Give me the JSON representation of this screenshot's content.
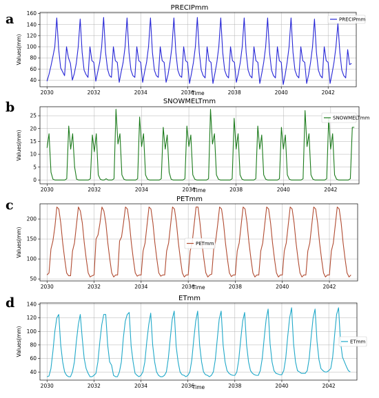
{
  "figure": {
    "panels": [
      {
        "letter": "a"
      },
      {
        "letter": "b"
      },
      {
        "letter": "c"
      },
      {
        "letter": "d"
      }
    ]
  },
  "chart_data": [
    {
      "type": "line",
      "title": "PRECIPmm",
      "xlabel": "Time",
      "ylabel": "Values(mm)",
      "xlim": [
        2029.7,
        2043.2
      ],
      "ylim": [
        28,
        162
      ],
      "yticks": [
        40,
        60,
        80,
        100,
        120,
        140,
        160
      ],
      "xticks": [
        2030,
        2032,
        2034,
        2036,
        2038,
        2040,
        2042
      ],
      "grid": true,
      "legend": "top-right",
      "series": [
        {
          "name": "PRECIPmm",
          "color": "#2424d6",
          "x_start": 2030.0,
          "step_months": 1,
          "values": [
            38,
            50,
            65,
            82,
            100,
            152,
            95,
            62,
            55,
            48,
            100,
            80,
            70,
            40,
            52,
            70,
            100,
            150,
            90,
            58,
            50,
            45,
            100,
            75,
            72,
            38,
            55,
            72,
            100,
            153,
            90,
            60,
            48,
            45,
            100,
            75,
            72,
            36,
            55,
            72,
            100,
            152,
            90,
            58,
            48,
            45,
            100,
            75,
            72,
            36,
            55,
            72,
            100,
            152,
            90,
            58,
            48,
            45,
            100,
            75,
            72,
            36,
            50,
            72,
            100,
            152,
            90,
            58,
            48,
            45,
            100,
            75,
            72,
            34,
            52,
            72,
            100,
            153,
            90,
            58,
            48,
            44,
            100,
            75,
            72,
            34,
            52,
            72,
            100,
            152,
            90,
            58,
            48,
            44,
            100,
            75,
            72,
            36,
            52,
            72,
            100,
            152,
            90,
            58,
            48,
            44,
            100,
            75,
            72,
            34,
            52,
            72,
            100,
            152,
            90,
            58,
            48,
            44,
            100,
            75,
            72,
            32,
            50,
            72,
            100,
            152,
            90,
            58,
            48,
            44,
            100,
            75,
            72,
            34,
            50,
            72,
            100,
            150,
            90,
            58,
            48,
            44,
            100,
            75,
            72,
            34,
            52,
            72,
            100,
            142,
            90,
            58,
            48,
            44,
            95,
            68,
            70
          ]
        }
      ]
    },
    {
      "type": "line",
      "title": "SNOWMELTmm",
      "xlabel": "Time",
      "ylabel": "Values(mm)",
      "xlim": [
        2029.7,
        2043.2
      ],
      "ylim": [
        -1.5,
        28.5
      ],
      "yticks": [
        0,
        5,
        10,
        15,
        20,
        25
      ],
      "xticks": [
        2030,
        2032,
        2034,
        2036,
        2038,
        2040,
        2042
      ],
      "grid": true,
      "legend": "top-right",
      "series": [
        {
          "name": "SNOWMELTmm",
          "color": "#1a7a1a",
          "x_start": 2030.0,
          "step_months": 1,
          "values": [
            12.5,
            18,
            3,
            0.3,
            0,
            0,
            0,
            0,
            0,
            0,
            0.5,
            21,
            12,
            18,
            5,
            0.3,
            0,
            0,
            0,
            0,
            0,
            0,
            0.5,
            17.5,
            11,
            18,
            2,
            0.3,
            0,
            0,
            0.5,
            0,
            0,
            0,
            0.5,
            27.5,
            14,
            18,
            2,
            0.3,
            0,
            0,
            0,
            0,
            0,
            0,
            0.5,
            24.5,
            13,
            18,
            2,
            0.3,
            0,
            0,
            0,
            0,
            0,
            0,
            0.5,
            20.5,
            12,
            17.5,
            3,
            0.3,
            0,
            0,
            0,
            0,
            0,
            0,
            0.5,
            21,
            13,
            17.5,
            2,
            0.3,
            0,
            0,
            0,
            0,
            0,
            0,
            0.5,
            27.5,
            14,
            18,
            2,
            0.3,
            0,
            0,
            0,
            0,
            0,
            0,
            0.5,
            24,
            12,
            18,
            2,
            0.3,
            0,
            0,
            0,
            0,
            0,
            0,
            0.5,
            21,
            12,
            17.5,
            2,
            0.3,
            0,
            0,
            0,
            0,
            0,
            0,
            0.5,
            20.5,
            12,
            17.5,
            2,
            0.3,
            0,
            0,
            0,
            0,
            0,
            0,
            0.5,
            27,
            13,
            18,
            2,
            0.3,
            0,
            0,
            0,
            0,
            0,
            0,
            0.5,
            24,
            12,
            18,
            2,
            0.3,
            0,
            0,
            0,
            0,
            0,
            0,
            0.5,
            20.5,
            20.5
          ]
        }
      ]
    },
    {
      "type": "line",
      "title": "PETmm",
      "xlabel": "Time",
      "ylabel": "Values(mm)",
      "xlim": [
        2029.7,
        2043.2
      ],
      "ylim": [
        45,
        238
      ],
      "yticks": [
        50,
        100,
        150,
        200
      ],
      "xticks": [
        2030,
        2032,
        2034,
        2036,
        2038,
        2040,
        2042
      ],
      "grid": true,
      "legend": "center",
      "series": [
        {
          "name": "PETmm",
          "color": "#b04a30",
          "x_start": 2030.0,
          "step_months": 1,
          "values": [
            60,
            65,
            125,
            145,
            180,
            230,
            225,
            190,
            140,
            100,
            65,
            58,
            58,
            120,
            140,
            185,
            230,
            220,
            190,
            140,
            100,
            65,
            55,
            58,
            60,
            150,
            160,
            190,
            230,
            220,
            190,
            140,
            100,
            65,
            55,
            60,
            60,
            145,
            155,
            190,
            230,
            225,
            190,
            140,
            100,
            65,
            57,
            60,
            60,
            120,
            140,
            185,
            230,
            225,
            190,
            140,
            100,
            65,
            57,
            60,
            60,
            120,
            140,
            185,
            230,
            225,
            190,
            140,
            100,
            65,
            55,
            60,
            60,
            120,
            140,
            185,
            230,
            230,
            190,
            140,
            100,
            65,
            55,
            60,
            62,
            125,
            145,
            185,
            230,
            225,
            190,
            140,
            100,
            65,
            56,
            60,
            60,
            120,
            140,
            185,
            230,
            225,
            190,
            140,
            100,
            65,
            55,
            60,
            60,
            120,
            140,
            185,
            230,
            225,
            190,
            140,
            100,
            65,
            55,
            60,
            60,
            120,
            140,
            185,
            230,
            225,
            190,
            140,
            100,
            65,
            55,
            60,
            60,
            120,
            140,
            185,
            230,
            225,
            190,
            140,
            100,
            65,
            55,
            60,
            60,
            120,
            140,
            185,
            230,
            225,
            190,
            140,
            100,
            65,
            55,
            60
          ]
        }
      ]
    },
    {
      "type": "line",
      "title": "ETmm",
      "xlabel": "Time",
      "ylabel": "Values(mm)",
      "xlim": [
        2029.7,
        2043.2
      ],
      "ylim": [
        28,
        142
      ],
      "yticks": [
        40,
        60,
        80,
        100,
        120,
        140
      ],
      "xticks": [
        2030,
        2032,
        2034,
        2036,
        2038,
        2040,
        2042
      ],
      "grid": true,
      "legend": "center-right",
      "series": [
        {
          "name": "ETmm",
          "color": "#1fa8c8",
          "x_start": 2030.0,
          "step_months": 1,
          "values": [
            33,
            34,
            45,
            70,
            100,
            120,
            125,
            80,
            55,
            40,
            35,
            33,
            33,
            40,
            55,
            85,
            110,
            125,
            90,
            60,
            45,
            38,
            33,
            33,
            35,
            38,
            55,
            85,
            110,
            125,
            125,
            80,
            55,
            50,
            35,
            33,
            33,
            40,
            55,
            90,
            115,
            125,
            128,
            78,
            55,
            38,
            35,
            33,
            35,
            40,
            55,
            85,
            110,
            127,
            80,
            55,
            40,
            35,
            33,
            33,
            35,
            40,
            60,
            90,
            118,
            130,
            78,
            55,
            40,
            36,
            35,
            33,
            35,
            40,
            58,
            88,
            115,
            130,
            80,
            55,
            40,
            36,
            35,
            33,
            35,
            40,
            58,
            88,
            118,
            130,
            80,
            55,
            42,
            38,
            36,
            35,
            35,
            40,
            58,
            88,
            115,
            128,
            80,
            55,
            42,
            38,
            36,
            35,
            35,
            42,
            60,
            90,
            118,
            133,
            82,
            55,
            42,
            38,
            37,
            36,
            36,
            42,
            60,
            92,
            120,
            135,
            82,
            55,
            42,
            40,
            38,
            38,
            38,
            42,
            60,
            92,
            120,
            133,
            85,
            58,
            45,
            42,
            40,
            40,
            42,
            45,
            62,
            95,
            125,
            135,
            85,
            62,
            55,
            48,
            42,
            40
          ]
        }
      ]
    }
  ]
}
